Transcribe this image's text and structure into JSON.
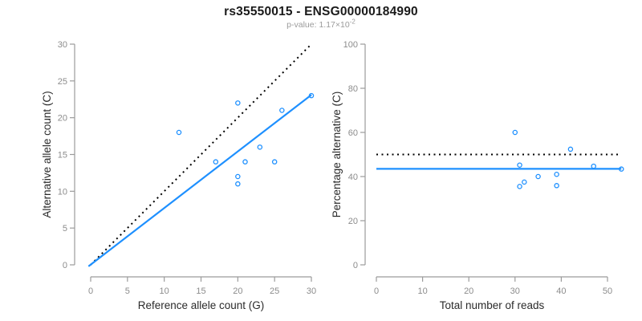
{
  "header": {
    "title": "rs35550015 - ENSG00000184990",
    "subtitle_label": "p-value: ",
    "subtitle_value": "1.17×10",
    "subtitle_exponent": "-2"
  },
  "colors": {
    "accent_blue": "#1E90FF",
    "dotted_black": "#000000",
    "axis_line_gray": "#9b9b9b",
    "tick_label_gray": "#8c8c8c",
    "axis_title_dark": "#2b2b2b",
    "subtitle_gray": "#9b9b9b",
    "background": "#ffffff"
  },
  "chart_data": [
    {
      "type": "scatter",
      "panel": "left",
      "xlabel": "Reference allele count (G)",
      "ylabel": "Alternative allele count (C)",
      "xlim": [
        0,
        30
      ],
      "ylim": [
        0,
        30
      ],
      "xticks": [
        0,
        5,
        10,
        15,
        20,
        25,
        30
      ],
      "yticks": [
        0,
        5,
        10,
        15,
        20,
        25,
        30
      ],
      "grid": false,
      "legend": "none",
      "marker": "open-circle",
      "points": [
        [
          12,
          18
        ],
        [
          17,
          14
        ],
        [
          20,
          11
        ],
        [
          20,
          12
        ],
        [
          20,
          22
        ],
        [
          21,
          14
        ],
        [
          23,
          16
        ],
        [
          25,
          14
        ],
        [
          26,
          21
        ],
        [
          30,
          23
        ]
      ],
      "lines": [
        {
          "name": "identity-line",
          "style": "dotted",
          "color": "#000000",
          "x1": 0,
          "y1": 0,
          "x2": 30,
          "y2": 30
        },
        {
          "name": "fit-line",
          "style": "solid",
          "color": "#1E90FF",
          "x1": -0.3,
          "y1": -0.2,
          "x2": 30,
          "y2": 23.1
        }
      ]
    },
    {
      "type": "scatter",
      "panel": "right",
      "xlabel": "Total number of reads",
      "ylabel": "Percentage alternative (C)",
      "xlim": [
        0,
        50
      ],
      "ylim": [
        0,
        100
      ],
      "xticks": [
        0,
        10,
        20,
        30,
        40,
        50
      ],
      "yticks": [
        0,
        20,
        40,
        60,
        80,
        100
      ],
      "grid": false,
      "legend": "none",
      "marker": "open-circle",
      "points": [
        [
          30,
          60
        ],
        [
          31,
          45.2
        ],
        [
          31,
          35.5
        ],
        [
          32,
          37.5
        ],
        [
          35,
          40
        ],
        [
          39,
          41
        ],
        [
          39,
          35.9
        ],
        [
          42,
          52.4
        ],
        [
          47,
          44.7
        ],
        [
          53,
          43.4
        ]
      ],
      "lines": [
        {
          "name": "fifty-percent-line",
          "style": "dotted",
          "color": "#000000",
          "x1": 0,
          "y1": 50,
          "x2": 52.5,
          "y2": 50
        },
        {
          "name": "mean-percentage-line",
          "style": "solid",
          "color": "#1E90FF",
          "x1": 0,
          "y1": 43.5,
          "x2": 53,
          "y2": 43.5
        }
      ]
    }
  ]
}
